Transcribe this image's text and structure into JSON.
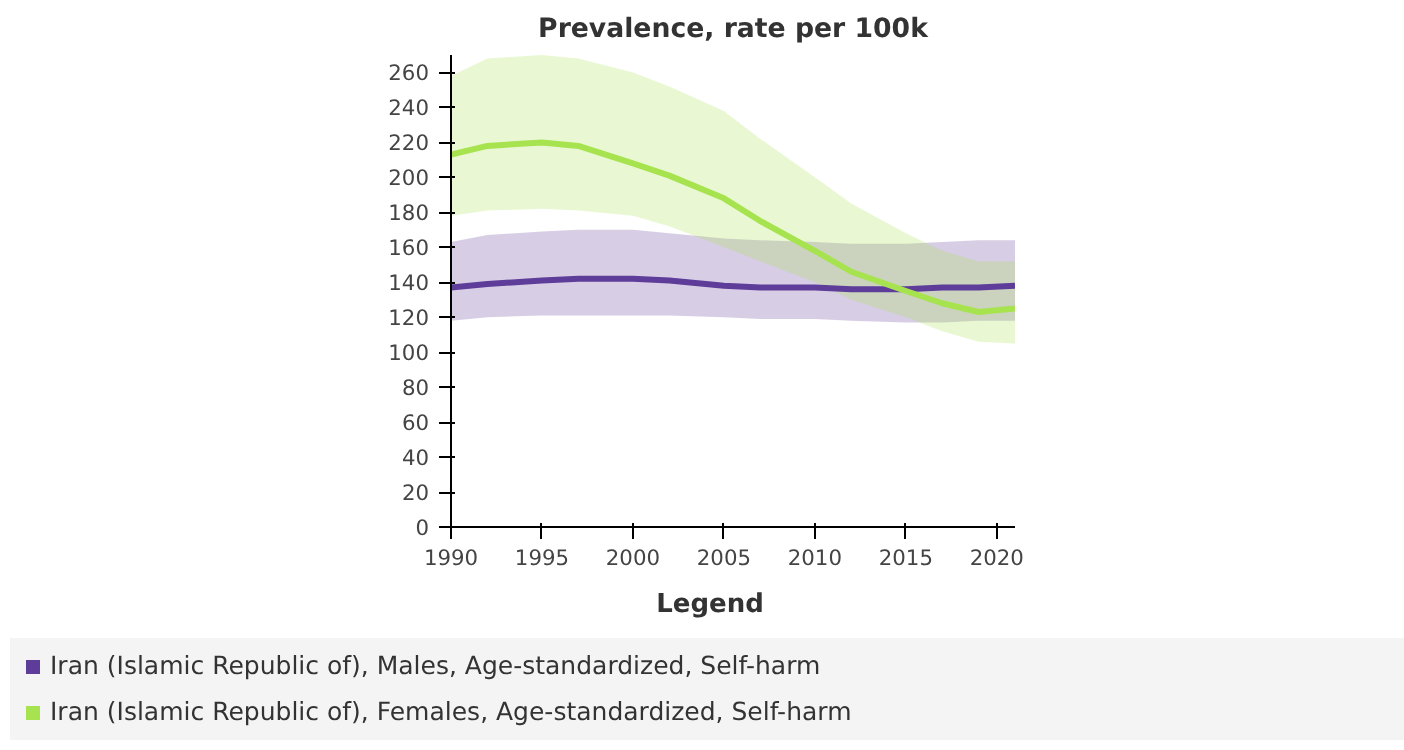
{
  "chart_data": {
    "type": "line",
    "title": "Prevalence, rate per 100k",
    "legend_title": "Legend",
    "legend": "bottom",
    "marker": "none",
    "line_style": "solid",
    "x": [
      1990,
      1992,
      1995,
      1997,
      2000,
      2002,
      2005,
      2007,
      2010,
      2012,
      2015,
      2017,
      2019,
      2021
    ],
    "xlim": [
      1990,
      2021
    ],
    "ylim": [
      0,
      270
    ],
    "xticks": [
      1990,
      1995,
      2000,
      2005,
      2010,
      2015,
      2020
    ],
    "yticks": [
      0,
      20,
      40,
      60,
      80,
      100,
      120,
      140,
      160,
      180,
      200,
      220,
      240,
      260
    ],
    "grid": false,
    "series": [
      {
        "name": "Iran (Islamic Republic of), Males, Age-standardized, Self-harm",
        "color": "#5e3c99",
        "values": [
          137,
          139,
          141,
          142,
          142,
          141,
          138,
          137,
          137,
          136,
          136,
          137,
          137,
          138
        ],
        "lower": [
          118,
          120,
          121,
          121,
          121,
          121,
          120,
          119,
          119,
          118,
          117,
          117,
          118,
          118
        ],
        "upper": [
          163,
          167,
          169,
          170,
          170,
          168,
          165,
          164,
          163,
          162,
          162,
          163,
          164,
          164
        ]
      },
      {
        "name": "Iran (Islamic Republic of), Females, Age-standardized, Self-harm",
        "color": "#a6e34f",
        "values": [
          213,
          218,
          220,
          218,
          208,
          201,
          188,
          175,
          158,
          146,
          135,
          128,
          123,
          125
        ],
        "lower": [
          178,
          181,
          182,
          181,
          178,
          172,
          160,
          152,
          140,
          130,
          120,
          112,
          106,
          105
        ],
        "upper": [
          258,
          268,
          270,
          268,
          260,
          252,
          238,
          222,
          200,
          185,
          168,
          158,
          152,
          152
        ]
      }
    ]
  }
}
